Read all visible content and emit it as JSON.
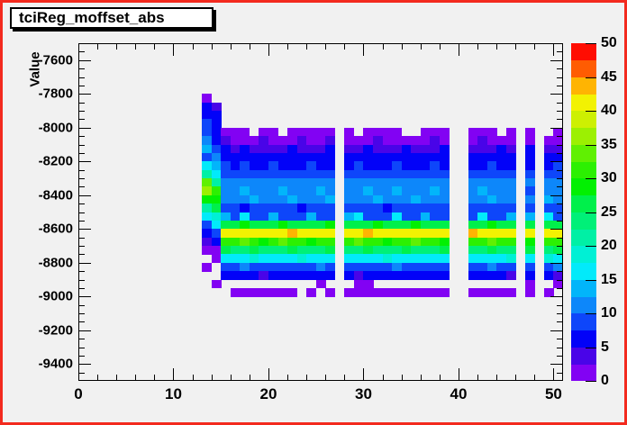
{
  "title": "tciReg_moffset_abs",
  "colors": {
    "canvas_border": "#f32a1e",
    "canvas_background": "#f1f1f1",
    "frame_line": "#000000",
    "title_box_background": "#ffffff",
    "text": "#000000"
  },
  "chart_data": {
    "type": "heatmap",
    "title": "tciReg_moffset_abs",
    "xlabel": "",
    "ylabel": "Value",
    "xlim": [
      0,
      51
    ],
    "ylim": [
      -9500,
      -7500
    ],
    "x_ticks": [
      0,
      10,
      20,
      30,
      40,
      50
    ],
    "x_minor_step": 2,
    "y_ticks": [
      -7600,
      -7800,
      -8000,
      -8200,
      -8400,
      -8600,
      -8800,
      -9000,
      -9200,
      -9400
    ],
    "y_minor_step": 50,
    "zlim": [
      0,
      50
    ],
    "z_ticks": [
      0,
      5,
      10,
      15,
      20,
      25,
      30,
      35,
      40,
      45,
      50
    ],
    "legend_position": "right-color-scale",
    "grid": false,
    "xbin_width": 1,
    "ybin_height": 50,
    "first_row_top_value": -7800,
    "palette": [
      "#8202f3",
      "#4904e8",
      "#0202f8",
      "#0e46fa",
      "#0d87fa",
      "#02b5fa",
      "#02eafa",
      "#00f0d5",
      "#00f0a5",
      "#00f078",
      "#00f04b",
      "#02f002",
      "#2cf002",
      "#60f002",
      "#9cf002",
      "#cdf002",
      "#f2f202",
      "#ffb402",
      "#ff5c02",
      "#ff0d02"
    ],
    "columns": {
      "13": [
        2,
        6,
        6,
        8,
        8,
        11,
        13,
        8,
        16,
        21,
        33,
        36,
        28,
        21,
        16,
        8,
        6,
        4,
        2,
        0,
        2,
        0,
        0,
        0
      ],
      "14": [
        0,
        4,
        6,
        6,
        6,
        6,
        8,
        11,
        13,
        16,
        21,
        31,
        28,
        26,
        18,
        16,
        8,
        6,
        2,
        2,
        0,
        0,
        2,
        0
      ],
      "15": [
        0,
        0,
        0,
        0,
        2,
        4,
        6,
        6,
        8,
        8,
        11,
        11,
        11,
        8,
        13,
        26,
        41,
        31,
        26,
        16,
        8,
        6,
        0,
        0
      ],
      "16": [
        0,
        0,
        0,
        0,
        2,
        2,
        4,
        6,
        6,
        8,
        11,
        11,
        11,
        8,
        9,
        26,
        41,
        31,
        23,
        16,
        8,
        6,
        0,
        2
      ],
      "17": [
        0,
        0,
        0,
        0,
        2,
        2,
        6,
        6,
        8,
        8,
        11,
        13,
        11,
        6,
        16,
        28,
        41,
        33,
        23,
        16,
        11,
        6,
        0,
        2
      ],
      "18": [
        0,
        0,
        0,
        0,
        0,
        2,
        4,
        6,
        6,
        8,
        11,
        11,
        13,
        8,
        9,
        26,
        41,
        31,
        26,
        18,
        8,
        6,
        0,
        2
      ],
      "19": [
        0,
        0,
        0,
        0,
        2,
        4,
        4,
        6,
        6,
        8,
        11,
        11,
        11,
        8,
        9,
        26,
        41,
        28,
        23,
        16,
        8,
        4,
        0,
        2
      ],
      "20": [
        0,
        0,
        0,
        0,
        2,
        2,
        4,
        6,
        8,
        8,
        11,
        11,
        11,
        8,
        13,
        26,
        41,
        31,
        23,
        16,
        8,
        6,
        0,
        2
      ],
      "21": [
        0,
        0,
        0,
        0,
        0,
        2,
        4,
        6,
        6,
        8,
        11,
        13,
        11,
        8,
        9,
        28,
        41,
        33,
        23,
        16,
        8,
        6,
        0,
        2
      ],
      "22": [
        0,
        0,
        0,
        0,
        2,
        2,
        6,
        6,
        6,
        8,
        11,
        11,
        13,
        8,
        9,
        26,
        43,
        31,
        26,
        16,
        8,
        6,
        0,
        2
      ],
      "23": [
        0,
        0,
        0,
        0,
        2,
        4,
        4,
        6,
        6,
        8,
        11,
        11,
        11,
        6,
        9,
        26,
        41,
        31,
        23,
        18,
        8,
        6,
        0,
        0
      ],
      "24": [
        0,
        0,
        0,
        0,
        2,
        2,
        4,
        6,
        8,
        8,
        11,
        11,
        11,
        8,
        13,
        26,
        41,
        28,
        23,
        16,
        8,
        6,
        0,
        2
      ],
      "25": [
        0,
        0,
        0,
        0,
        2,
        2,
        4,
        6,
        6,
        8,
        11,
        13,
        11,
        8,
        9,
        26,
        41,
        31,
        23,
        16,
        11,
        6,
        2,
        0
      ],
      "26": [
        0,
        0,
        0,
        0,
        2,
        4,
        6,
        6,
        6,
        8,
        11,
        11,
        13,
        8,
        9,
        28,
        41,
        31,
        26,
        16,
        8,
        6,
        0,
        2
      ],
      "28": [
        0,
        0,
        0,
        0,
        2,
        2,
        4,
        6,
        6,
        8,
        11,
        11,
        11,
        8,
        13,
        26,
        41,
        31,
        23,
        16,
        8,
        6,
        0,
        2
      ],
      "29": [
        0,
        0,
        0,
        0,
        0,
        2,
        4,
        6,
        8,
        8,
        11,
        11,
        11,
        8,
        16,
        26,
        41,
        33,
        23,
        16,
        8,
        4,
        2,
        2
      ],
      "30": [
        0,
        0,
        0,
        0,
        2,
        2,
        6,
        6,
        6,
        8,
        11,
        13,
        11,
        8,
        9,
        26,
        43,
        31,
        26,
        16,
        8,
        6,
        2,
        2
      ],
      "31": [
        0,
        0,
        0,
        0,
        2,
        4,
        4,
        6,
        6,
        8,
        11,
        11,
        13,
        8,
        9,
        28,
        41,
        31,
        23,
        16,
        8,
        6,
        0,
        2
      ],
      "32": [
        0,
        0,
        0,
        0,
        2,
        2,
        4,
        6,
        6,
        8,
        11,
        11,
        11,
        6,
        9,
        26,
        41,
        28,
        23,
        18,
        8,
        6,
        0,
        2
      ],
      "33": [
        0,
        0,
        0,
        0,
        2,
        2,
        4,
        6,
        8,
        8,
        11,
        13,
        11,
        8,
        16,
        26,
        41,
        31,
        23,
        16,
        11,
        6,
        0,
        2
      ],
      "34": [
        0,
        0,
        0,
        0,
        0,
        2,
        6,
        6,
        6,
        8,
        11,
        11,
        11,
        8,
        9,
        26,
        41,
        31,
        26,
        16,
        8,
        6,
        0,
        2
      ],
      "35": [
        0,
        0,
        0,
        0,
        0,
        2,
        4,
        6,
        6,
        8,
        11,
        11,
        13,
        8,
        9,
        28,
        41,
        33,
        23,
        16,
        8,
        6,
        0,
        2
      ],
      "36": [
        0,
        0,
        0,
        0,
        2,
        2,
        4,
        6,
        6,
        8,
        11,
        11,
        11,
        8,
        13,
        26,
        41,
        31,
        23,
        16,
        8,
        6,
        0,
        2
      ],
      "37": [
        0,
        0,
        0,
        0,
        2,
        4,
        4,
        6,
        8,
        8,
        11,
        13,
        11,
        8,
        9,
        26,
        41,
        31,
        23,
        16,
        8,
        6,
        0,
        2
      ],
      "38": [
        0,
        0,
        0,
        0,
        2,
        2,
        6,
        6,
        6,
        8,
        11,
        11,
        11,
        8,
        9,
        26,
        41,
        28,
        26,
        16,
        8,
        6,
        0,
        2
      ],
      "41": [
        0,
        0,
        0,
        0,
        2,
        2,
        4,
        6,
        6,
        8,
        11,
        11,
        11,
        8,
        9,
        26,
        43,
        31,
        23,
        16,
        8,
        6,
        0,
        2
      ],
      "42": [
        0,
        0,
        0,
        0,
        2,
        4,
        4,
        6,
        6,
        8,
        11,
        13,
        11,
        8,
        16,
        26,
        41,
        31,
        23,
        16,
        8,
        6,
        0,
        2
      ],
      "43": [
        0,
        0,
        0,
        0,
        2,
        2,
        4,
        6,
        8,
        8,
        11,
        11,
        13,
        8,
        9,
        28,
        41,
        33,
        26,
        16,
        11,
        6,
        0,
        2
      ],
      "44": [
        0,
        0,
        0,
        0,
        0,
        2,
        6,
        6,
        6,
        8,
        11,
        11,
        11,
        8,
        9,
        26,
        41,
        31,
        23,
        16,
        8,
        6,
        0,
        2
      ],
      "45": [
        0,
        0,
        0,
        0,
        2,
        2,
        4,
        6,
        6,
        8,
        11,
        11,
        11,
        8,
        13,
        26,
        41,
        31,
        23,
        18,
        8,
        4,
        0,
        2
      ],
      "47": [
        0,
        0,
        0,
        0,
        2,
        2,
        6,
        6,
        6,
        8,
        11,
        8,
        11,
        8,
        13,
        26,
        41,
        28,
        26,
        16,
        8,
        6,
        2,
        2
      ],
      "49": [
        0,
        0,
        0,
        0,
        0,
        2,
        4,
        6,
        6,
        8,
        11,
        11,
        13,
        8,
        16,
        26,
        41,
        31,
        23,
        18,
        8,
        6,
        0,
        2
      ],
      "50": [
        0,
        0,
        0,
        0,
        2,
        2,
        4,
        6,
        8,
        8,
        11,
        11,
        11,
        8,
        9,
        26,
        41,
        31,
        26,
        16,
        11,
        4,
        2,
        0
      ]
    }
  }
}
